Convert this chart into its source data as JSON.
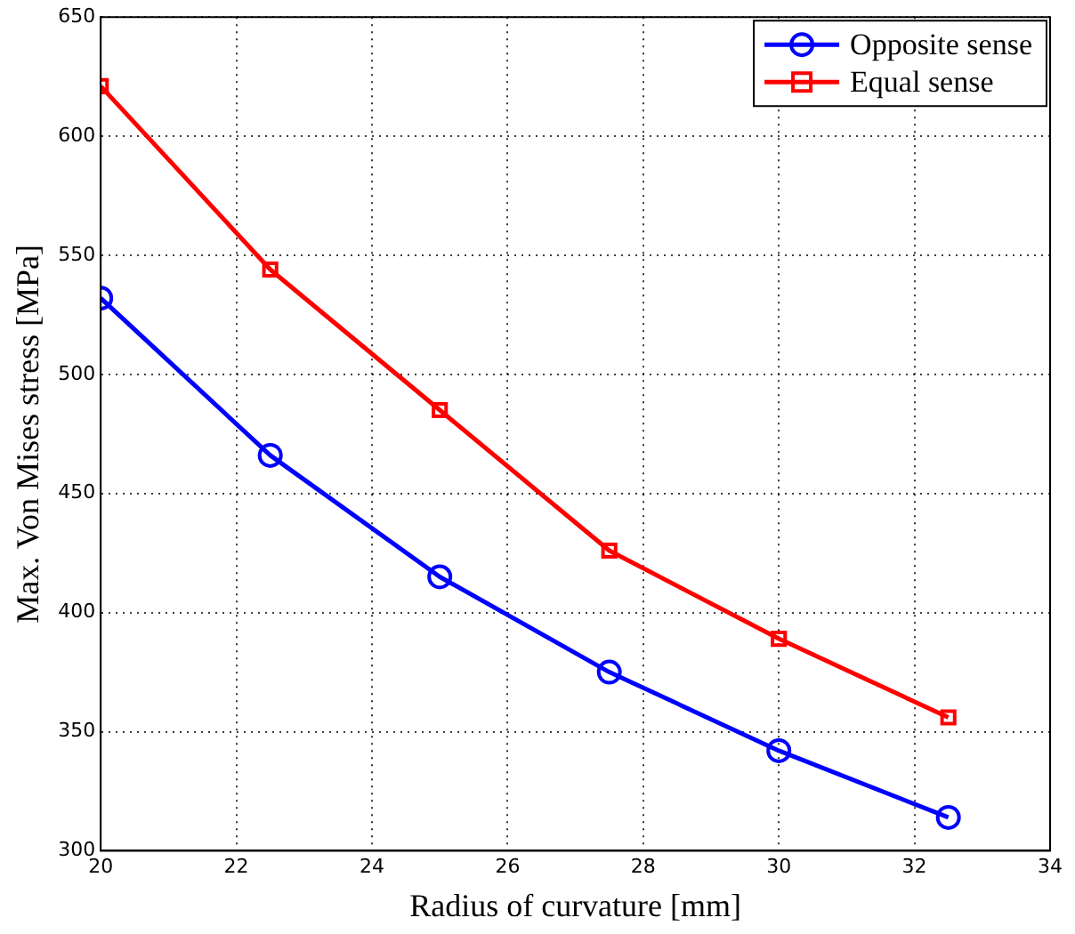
{
  "chart_data": {
    "type": "line",
    "xlabel": "Radius of curvature [mm]",
    "ylabel": "Max. Von Mises stress [MPa]",
    "x": [
      20,
      22.5,
      25,
      27.5,
      30,
      32.5
    ],
    "series": [
      {
        "name": "Opposite sense",
        "color": "#0000ff",
        "marker": "circle",
        "values": [
          532,
          466,
          415,
          375,
          342,
          314
        ]
      },
      {
        "name": "Equal sense",
        "color": "#ff0000",
        "marker": "square",
        "values": [
          621,
          544,
          485,
          426,
          389,
          356
        ]
      }
    ],
    "xlim": [
      20,
      34
    ],
    "xticks": [
      20,
      22,
      24,
      26,
      28,
      30,
      32,
      34
    ],
    "ylim": [
      300,
      650
    ],
    "yticks": [
      300,
      350,
      400,
      450,
      500,
      550,
      600,
      650
    ],
    "grid": true,
    "legend": "top right",
    "line_style": "solid"
  }
}
